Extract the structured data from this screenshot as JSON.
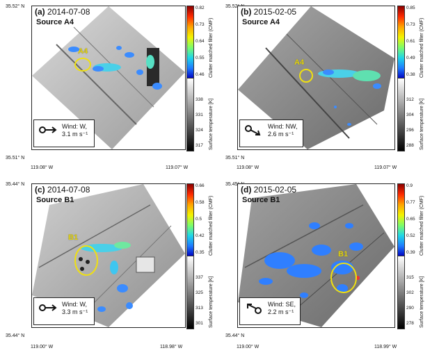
{
  "panels": [
    {
      "id": "a",
      "label": "(a)",
      "date": "2014-07-08",
      "source": "Source A4",
      "marker": "A4",
      "lat_top": "35.52° N",
      "lat_bottom": "35.51° N",
      "lon_left": "119.08° W",
      "lon_right": "119.07° W",
      "wind_line1": "Wind: W,",
      "wind_line2": "3.1 m  s⁻¹",
      "wind_direction": "W",
      "cmf_ticks": [
        "0.82",
        "0.73",
        "0.64",
        "0.55",
        "0.46"
      ],
      "temp_ticks": [
        "338",
        "331",
        "324",
        "317"
      ]
    },
    {
      "id": "b",
      "label": "(b)",
      "date": "2015-02-05",
      "source": "Source A4",
      "marker": "A4",
      "lat_top": "35.52° N",
      "lat_bottom": "35.51° N",
      "lon_left": "119.08° W",
      "lon_right": "119.07° W",
      "wind_line1": "Wind: NW,",
      "wind_line2": "2.6 m  s⁻¹",
      "wind_direction": "NW",
      "cmf_ticks": [
        "0.85",
        "0.73",
        "0.61",
        "0.49",
        "0.38"
      ],
      "temp_ticks": [
        "312",
        "304",
        "296",
        "288"
      ]
    },
    {
      "id": "c",
      "label": "(c)",
      "date": "2014-07-08",
      "source": "Source B1",
      "marker": "B1",
      "lat_top": "35.44° N",
      "lat_bottom": "35.44° N",
      "lon_left": "119.00° W",
      "lon_right": "118.98° W",
      "wind_line1": "Wind: W,",
      "wind_line2": "3.3 m  s⁻¹",
      "wind_direction": "W",
      "cmf_ticks": [
        "0.66",
        "0.58",
        "0.5",
        "0.42",
        "0.35"
      ],
      "temp_ticks": [
        "337",
        "325",
        "313",
        "301"
      ]
    },
    {
      "id": "d",
      "label": "(d)",
      "date": "2015-02-05",
      "source": "Source B1",
      "marker": "B1",
      "lat_top": "35.45° N",
      "lat_bottom": "35.44° N",
      "lon_left": "119.00° W",
      "lon_right": "118.99° W",
      "wind_line1": "Wind: SE,",
      "wind_line2": "2.2 m  s⁻¹",
      "wind_direction": "SE",
      "cmf_ticks": [
        "0.9",
        "0.77",
        "0.65",
        "0.52",
        "0.39"
      ],
      "temp_ticks": [
        "315",
        "302",
        "290",
        "278"
      ]
    }
  ],
  "colorbar_titles": {
    "cmf": "Clutter matched filter (CMF)",
    "temp": "Surface  temperature [K]"
  }
}
